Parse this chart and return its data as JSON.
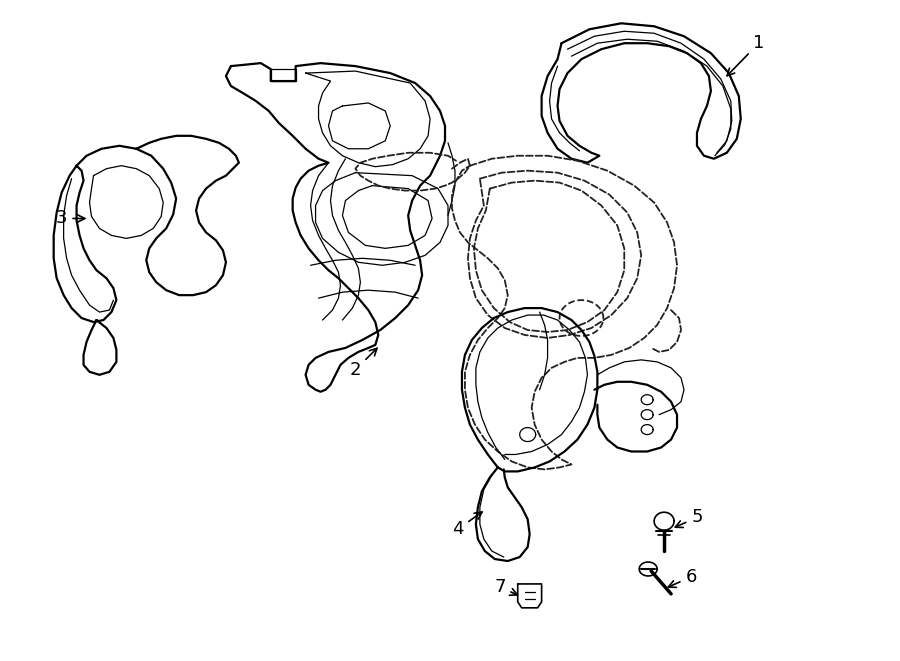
{
  "bg_color": "#ffffff",
  "line_color": "#000000",
  "fig_width": 9.0,
  "fig_height": 6.61,
  "dpi": 100,
  "lw_main": 1.6,
  "lw_inner": 0.9,
  "lw_dash": 1.3
}
